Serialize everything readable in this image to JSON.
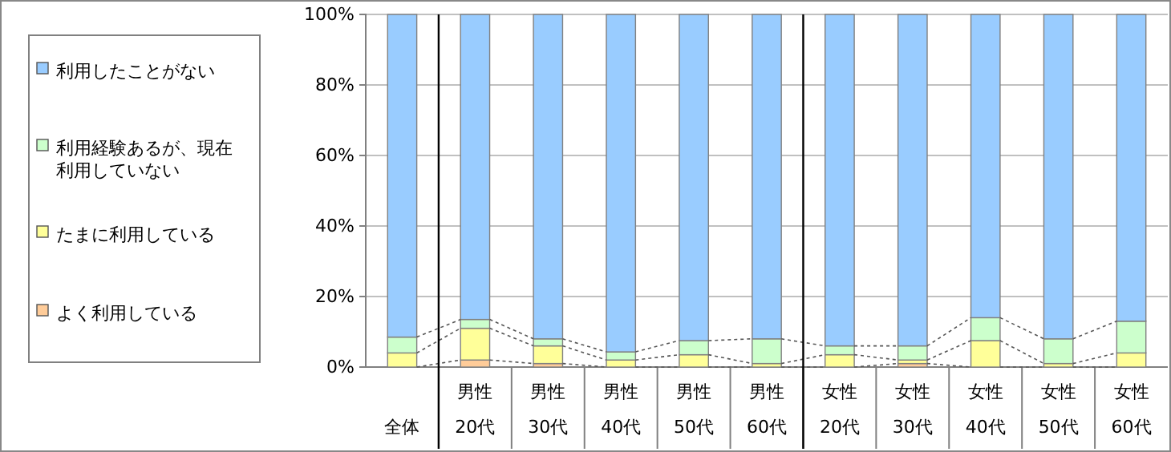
{
  "chart_data": {
    "type": "bar",
    "stacked": true,
    "categories": [
      "全体",
      "男性\n20代",
      "男性\n30代",
      "男性\n40代",
      "男性\n50代",
      "男性\n60代",
      "女性\n20代",
      "女性\n30代",
      "女性\n40代",
      "女性\n50代",
      "女性\n60代"
    ],
    "series": [
      {
        "name": "よく利用している",
        "color": "#ffcc99",
        "values": [
          null,
          2,
          1,
          null,
          0,
          0,
          0,
          1,
          0,
          0,
          0
        ]
      },
      {
        "name": "たまに利用している",
        "color": "#ffff99",
        "values": [
          4,
          9,
          5,
          2,
          3.5,
          1,
          3.5,
          1,
          7.5,
          1,
          4
        ]
      },
      {
        "name": "利用経験あるが、現在利用していない",
        "color": "#ccffcc",
        "values": [
          4.5,
          2.5,
          2,
          2.3,
          4,
          7,
          2.5,
          4,
          6.5,
          7,
          9
        ]
      },
      {
        "name": "利用したことがない",
        "color": "#99ccff",
        "values": [
          91.5,
          86.5,
          92,
          95.7,
          92.5,
          92,
          94,
          94,
          86,
          92,
          87
        ]
      }
    ],
    "ylim": [
      0,
      100
    ],
    "yticks": [
      {
        "value": 0,
        "label": "0%"
      },
      {
        "value": 20,
        "label": "20%"
      },
      {
        "value": 40,
        "label": "40%"
      },
      {
        "value": 60,
        "label": "60%"
      },
      {
        "value": 80,
        "label": "80%"
      },
      {
        "value": 100,
        "label": "100%"
      }
    ],
    "grid": "y",
    "legend": "left"
  }
}
